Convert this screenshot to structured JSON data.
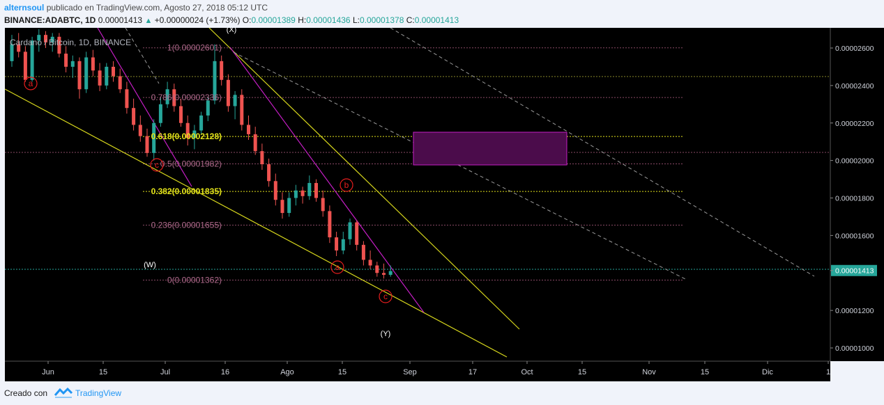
{
  "header": {
    "author": "alternsoul",
    "published_text": "publicado en TradingView.com, Agosto 27, 2018 05:12 UTC",
    "symbol": "BINANCE:ADABTC, 1D",
    "last_price": "0.00001413",
    "change_arrow": "▲",
    "change": "+0.00000024 (+1.73%)",
    "o_label": "O:",
    "o_value": "0.00001389",
    "h_label": "H:",
    "h_value": "0.00001436",
    "l_label": "L:",
    "l_value": "0.00001378",
    "c_label": "C:",
    "c_value": "0.00001413"
  },
  "chart_data": {
    "type": "candlestick",
    "title": "Cardano / Bitcoin, 1D, BINANCE",
    "price_axis_ticks": [
      "0.00002600",
      "0.00002400",
      "0.00002200",
      "0.00002000",
      "0.00001800",
      "0.00001600",
      "0.00001413",
      "0.00001200",
      "0.00001000"
    ],
    "price_axis_values": [
      2.6e-05,
      2.4e-05,
      2.2e-05,
      2e-05,
      1.8e-05,
      1.6e-05,
      1.413e-05,
      1.2e-05,
      1e-05
    ],
    "current_price_label": "0.00001413",
    "time_axis_ticks": [
      "Jun",
      "15",
      "Jul",
      "16",
      "Ago",
      "15",
      "Sep",
      "17",
      "Oct",
      "15",
      "Nov",
      "15",
      "Dic",
      "1"
    ],
    "fib_levels": [
      {
        "label": "1(0.00002601)",
        "value": 2.601e-05
      },
      {
        "label": "0.786(0.00002336)",
        "value": 2.336e-05
      },
      {
        "label": "0.618(0.00002128)",
        "value": 2.128e-05
      },
      {
        "label": "0.5(0.00001982)",
        "value": 1.982e-05
      },
      {
        "label": "0.382(0.00001835)",
        "value": 1.835e-05
      },
      {
        "label": "0.236(0.00001655)",
        "value": 1.655e-05
      },
      {
        "label": "0(0.00001362)",
        "value": 1.362e-05
      }
    ],
    "wave_labels": [
      "a",
      "c",
      "a",
      "b",
      "c"
    ],
    "structure_labels": [
      "(X)",
      "(W)",
      "(Y)"
    ],
    "colors": {
      "background": "#000000",
      "up": "#26a69a",
      "down": "#ef5350",
      "fib": "#8a4a66",
      "fib_highlight": "#e3e31a",
      "yellow_lines": "#d6d61c",
      "magenta_lines": "#c41ec4",
      "box_fill": "#4b0c4b",
      "box_border": "#c41ec4",
      "price_tag": "#26a69a",
      "wave_circle": "#e81e1e"
    },
    "candles": [
      [
        2.53e-05,
        2.67e-05,
        2.5e-05,
        2.62e-05
      ],
      [
        2.62e-05,
        2.68e-05,
        2.55e-05,
        2.58e-05
      ],
      [
        2.58e-05,
        2.61e-05,
        2.42e-05,
        2.43e-05
      ],
      [
        2.43e-05,
        2.66e-05,
        2.42e-05,
        2.64e-05
      ],
      [
        2.64e-05,
        2.7e-05,
        2.58e-05,
        2.67e-05
      ],
      [
        2.67e-05,
        2.69e-05,
        2.6e-05,
        2.63e-05
      ],
      [
        2.63e-05,
        2.68e-05,
        2.58e-05,
        2.66e-05
      ],
      [
        2.66e-05,
        2.68e-05,
        2.55e-05,
        2.57e-05
      ],
      [
        2.57e-05,
        2.61e-05,
        2.47e-05,
        2.5e-05
      ],
      [
        2.5e-05,
        2.56e-05,
        2.44e-05,
        2.53e-05
      ],
      [
        2.53e-05,
        2.55e-05,
        2.33e-05,
        2.38e-05
      ],
      [
        2.38e-05,
        2.58e-05,
        2.36e-05,
        2.55e-05
      ],
      [
        2.55e-05,
        2.59e-05,
        2.45e-05,
        2.48e-05
      ],
      [
        2.48e-05,
        2.52e-05,
        2.37e-05,
        2.4e-05
      ],
      [
        2.4e-05,
        2.52e-05,
        2.38e-05,
        2.5e-05
      ],
      [
        2.5e-05,
        2.53e-05,
        2.42e-05,
        2.45e-05
      ],
      [
        2.45e-05,
        2.49e-05,
        2.36e-05,
        2.38e-05
      ],
      [
        2.38e-05,
        2.42e-05,
        2.25e-05,
        2.28e-05
      ],
      [
        2.28e-05,
        2.33e-05,
        2.16e-05,
        2.19e-05
      ],
      [
        2.19e-05,
        2.24e-05,
        2.1e-05,
        2.13e-05
      ],
      [
        2.13e-05,
        2.17e-05,
        2.02e-05,
        2.04e-05
      ],
      [
        2.04e-05,
        2.22e-05,
        2e-05,
        2.2e-05
      ],
      [
        2.2e-05,
        2.34e-05,
        2.18e-05,
        2.3e-05
      ],
      [
        2.3e-05,
        2.42e-05,
        2.28e-05,
        2.38e-05
      ],
      [
        2.38e-05,
        2.41e-05,
        2.26e-05,
        2.29e-05
      ],
      [
        2.29e-05,
        2.33e-05,
        2.18e-05,
        2.2e-05
      ],
      [
        2.2e-05,
        2.24e-05,
        2.08e-05,
        2.12e-05
      ],
      [
        2.12e-05,
        2.19e-05,
        2.06e-05,
        2.16e-05
      ],
      [
        2.16e-05,
        2.26e-05,
        2.14e-05,
        2.24e-05
      ],
      [
        2.24e-05,
        2.34e-05,
        2.21e-05,
        2.32e-05
      ],
      [
        2.32e-05,
        2.62e-05,
        2.3e-05,
        2.53e-05
      ],
      [
        2.53e-05,
        2.56e-05,
        2.4e-05,
        2.43e-05
      ],
      [
        2.43e-05,
        2.46e-05,
        2.26e-05,
        2.29e-05
      ],
      [
        2.29e-05,
        2.37e-05,
        2.22e-05,
        2.35e-05
      ],
      [
        2.35e-05,
        2.38e-05,
        2.16e-05,
        2.19e-05
      ],
      [
        2.19e-05,
        2.24e-05,
        2.11e-05,
        2.14e-05
      ],
      [
        2.14e-05,
        2.18e-05,
        2.03e-05,
        2.05e-05
      ],
      [
        2.05e-05,
        2.09e-05,
        1.95e-05,
        1.98e-05
      ],
      [
        1.98e-05,
        2.01e-05,
        1.86e-05,
        1.89e-05
      ],
      [
        1.89e-05,
        1.93e-05,
        1.76e-05,
        1.79e-05
      ],
      [
        1.79e-05,
        1.83e-05,
        1.69e-05,
        1.72e-05
      ],
      [
        1.72e-05,
        1.83e-05,
        1.7e-05,
        1.8e-05
      ],
      [
        1.8e-05,
        1.87e-05,
        1.76e-05,
        1.84e-05
      ],
      [
        1.84e-05,
        1.86e-05,
        1.77e-05,
        1.81e-05
      ],
      [
        1.81e-05,
        1.92e-05,
        1.79e-05,
        1.88e-05
      ],
      [
        1.88e-05,
        1.9e-05,
        1.78e-05,
        1.8e-05
      ],
      [
        1.8e-05,
        1.84e-05,
        1.7e-05,
        1.73e-05
      ],
      [
        1.73e-05,
        1.76e-05,
        1.56e-05,
        1.59e-05
      ],
      [
        1.59e-05,
        1.62e-05,
        1.49e-05,
        1.52e-05
      ],
      [
        1.52e-05,
        1.62e-05,
        1.5e-05,
        1.58e-05
      ],
      [
        1.58e-05,
        1.69e-05,
        1.55e-05,
        1.67e-05
      ],
      [
        1.67e-05,
        1.68e-05,
        1.52e-05,
        1.55e-05
      ],
      [
        1.55e-05,
        1.57e-05,
        1.44e-05,
        1.47e-05
      ],
      [
        1.47e-05,
        1.52e-05,
        1.42e-05,
        1.44e-05
      ],
      [
        1.44e-05,
        1.46e-05,
        1.38e-05,
        1.4e-05
      ],
      [
        1.4e-05,
        1.45e-05,
        1.37e-05,
        1.39e-05
      ],
      [
        1.39e-05,
        1.44e-05,
        1.38e-05,
        1.41e-05
      ]
    ]
  },
  "footer": {
    "made_with": "Creado con",
    "brand": "TradingView"
  }
}
